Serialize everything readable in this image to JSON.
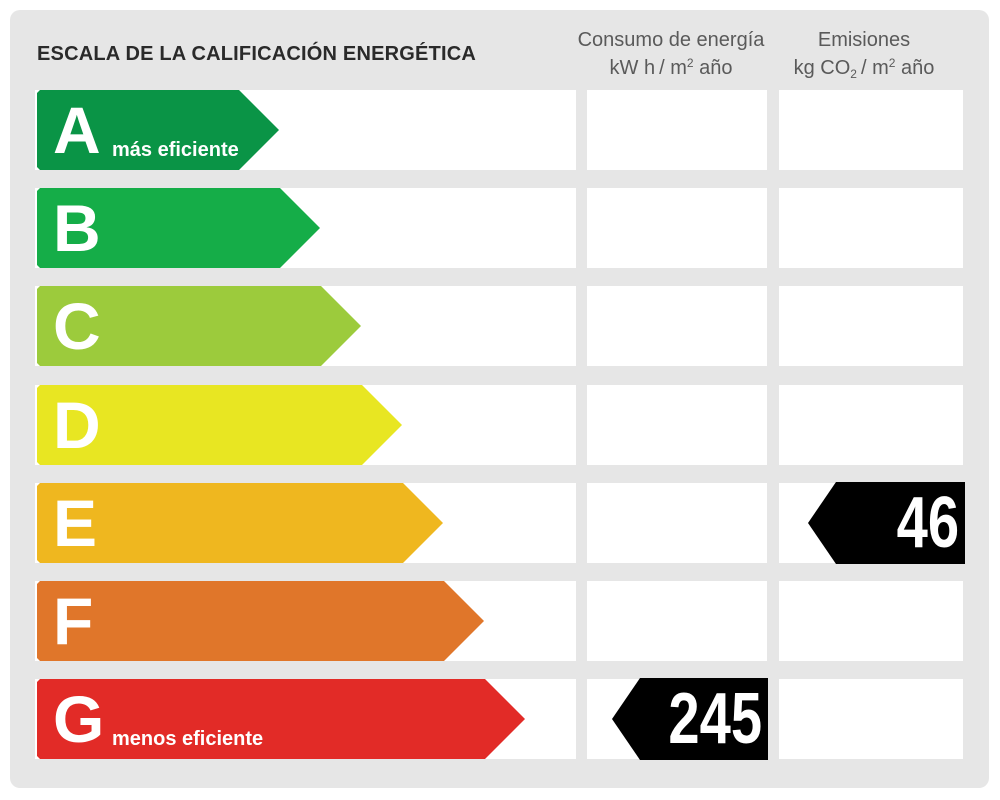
{
  "title": "ESCALA DE LA CALIFICACIÓN ENERGÉTICA",
  "columns": {
    "energy": {
      "line1": "Consumo de energía",
      "line2_prefix": "kW h",
      "line2_sep": "/ m",
      "line2_sup": "2",
      "line2_suffix": " año"
    },
    "emissions": {
      "line1": "Emisiones",
      "line2_prefix": "kg CO",
      "line2_sub": "2",
      "line2_sep": "/ m",
      "line2_sup": "2",
      "line2_suffix": " año"
    }
  },
  "chart_data": {
    "type": "table",
    "bands": [
      {
        "letter": "A",
        "note": "más eficiente",
        "color": "#0a9446"
      },
      {
        "letter": "B",
        "note": "",
        "color": "#15ad48"
      },
      {
        "letter": "C",
        "note": "",
        "color": "#9ccb3c"
      },
      {
        "letter": "D",
        "note": "",
        "color": "#e8e622"
      },
      {
        "letter": "E",
        "note": "",
        "color": "#efb71f"
      },
      {
        "letter": "F",
        "note": "",
        "color": "#e0762a"
      },
      {
        "letter": "G",
        "note": "menos eficiente",
        "color": "#e22b27"
      }
    ],
    "energy_consumption": {
      "rating": "G",
      "value": 245
    },
    "emissions": {
      "rating": "E",
      "value": 46
    }
  },
  "colors": {
    "panel": "#e6e6e6",
    "cell": "#ffffff",
    "marker": "#000000"
  }
}
